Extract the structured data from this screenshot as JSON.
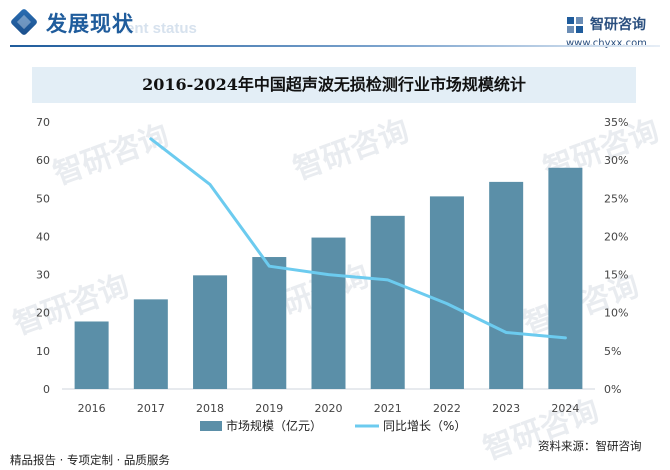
{
  "header": {
    "title": "发展现状",
    "subtitle": "ent status",
    "logo_name": "智研咨询",
    "logo_url": "www.chyxx.com"
  },
  "chart_title": "2016-2024年中国超声波无损检测行业市场规模统计",
  "chart_data": {
    "type": "bar",
    "title": "2016-2024年中国超声波无损检测行业市场规模统计",
    "categories": [
      "2016",
      "2017",
      "2018",
      "2019",
      "2020",
      "2021",
      "2022",
      "2023",
      "2024"
    ],
    "series": [
      {
        "name": "市场规模（亿元）",
        "type": "bar",
        "axis": "left",
        "color": "#5b8fa8",
        "values": [
          17.7,
          23.5,
          29.8,
          34.6,
          39.7,
          45.4,
          50.5,
          54.3,
          58.0
        ]
      },
      {
        "name": "同比增长（%）",
        "type": "line",
        "axis": "right",
        "color": "#6ccbef",
        "values": [
          null,
          32.8,
          26.8,
          16.1,
          15.0,
          14.3,
          11.2,
          7.4,
          6.7
        ]
      }
    ],
    "y_left": {
      "min": 0,
      "max": 70,
      "ticks": [
        "0",
        "10",
        "20",
        "30",
        "40",
        "50",
        "60",
        "70"
      ]
    },
    "y_right": {
      "min": 0,
      "max": 35,
      "ticks": [
        "0%",
        "5%",
        "10%",
        "15%",
        "20%",
        "25%",
        "30%",
        "35%"
      ]
    },
    "grid": false,
    "legend_position": "bottom"
  },
  "watermark_text": "智研咨询",
  "footer": {
    "left": "精品报告 · 专项定制 · 品质服务",
    "right": "资料来源：智研咨询"
  }
}
